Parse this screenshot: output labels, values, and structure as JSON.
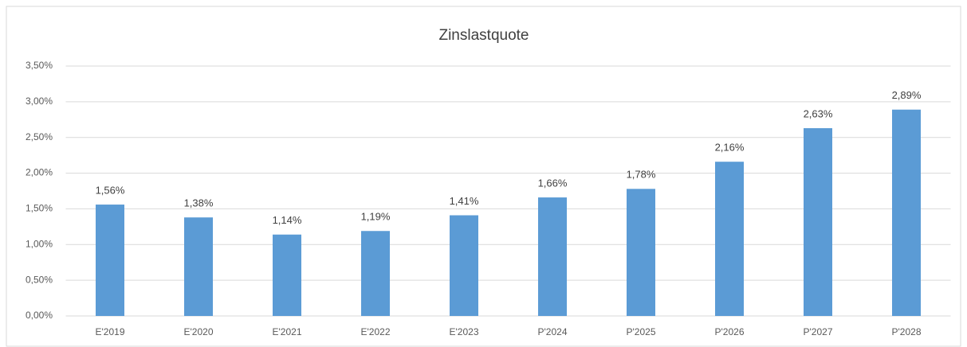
{
  "chart_data": {
    "type": "bar",
    "title": "Zinslastquote",
    "categories": [
      "E'2019",
      "E'2020",
      "E'2021",
      "E'2022",
      "E'2023",
      "P'2024",
      "P'2025",
      "P'2026",
      "P'2027",
      "P'2028"
    ],
    "values": [
      1.56,
      1.38,
      1.14,
      1.19,
      1.41,
      1.66,
      1.78,
      2.16,
      2.63,
      2.89
    ],
    "value_labels": [
      "1,56%",
      "1,38%",
      "1,14%",
      "1,19%",
      "1,41%",
      "1,66%",
      "1,78%",
      "2,16%",
      "2,63%",
      "2,89%"
    ],
    "color": "#5b9bd5",
    "ylim": [
      0,
      3.5
    ],
    "yticks": [
      {
        "value": 0,
        "label": "0,00%"
      },
      {
        "value": 0.5,
        "label": "0,50%"
      },
      {
        "value": 1,
        "label": "1,00%"
      },
      {
        "value": 1.5,
        "label": "1,50%"
      },
      {
        "value": 2,
        "label": "2,00%"
      },
      {
        "value": 2.5,
        "label": "2,50%"
      },
      {
        "value": 3,
        "label": "3,00%"
      },
      {
        "value": 3.5,
        "label": "3,50%"
      }
    ],
    "grid": true
  }
}
